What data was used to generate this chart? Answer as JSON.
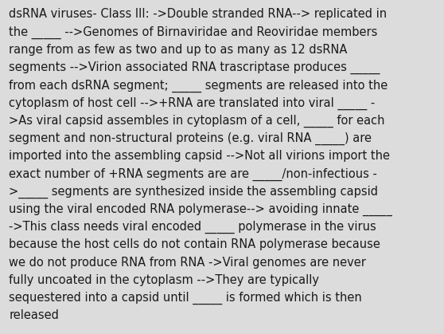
{
  "background_color": "#dcdcdc",
  "text_color": "#1a1a1a",
  "font_size": 10.5,
  "font_family": "DejaVu Sans",
  "text": "dsRNA viruses- Class III: ->Double stranded RNA--> replicated in\nthe _____ -->Genomes of Birnaviridae and Reoviridae members\nrange from as few as two and up to as many as 12 dsRNA\nsegments -->Virion associated RNA trascriptase produces _____\nfrom each dsRNA segment; _____ segments are released into the\ncytoplasm of host cell -->+RNA are translated into viral _____ -\n>As viral capsid assembles in cytoplasm of a cell, _____ for each\nsegment and non-structural proteins (e.g. viral RNA _____) are\nimported into the assembling capsid -->Not all virions import the\nexact number of +RNA segments are are _____/non-infectious -\n>_____ segments are synthesized inside the assembling capsid\nusing the viral encoded RNA polymerase--> avoiding innate _____\n->This class needs viral encoded _____ polymerase in the virus\nbecause the host cells do not contain RNA polymerase because\nwe do not produce RNA from RNA ->Viral genomes are never\nfully uncoated in the cytoplasm -->They are typically\nsequestered into a capsid until _____ is formed which is then\nreleased"
}
